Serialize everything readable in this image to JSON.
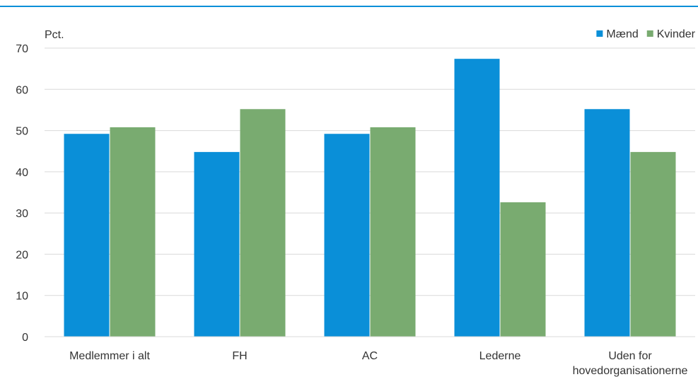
{
  "chart_data": {
    "type": "bar",
    "unit_label": "Pct.",
    "categories": [
      "Medlemmer i alt",
      "FH",
      "AC",
      "Lederne",
      [
        "Uden for",
        "hovedorganisationerne"
      ]
    ],
    "series": [
      {
        "name": "Mænd",
        "color": "#0a8fd8",
        "values": [
          49.2,
          44.8,
          49.2,
          67.4,
          55.2
        ]
      },
      {
        "name": "Kvinder",
        "color": "#79ab70",
        "values": [
          50.8,
          55.2,
          50.8,
          32.6,
          44.8
        ]
      }
    ],
    "ylim": [
      0,
      70
    ],
    "yticks": [
      0,
      10,
      20,
      30,
      40,
      50,
      60,
      70
    ],
    "grid": true,
    "legend_position": "top-right",
    "accent_color": "#0a8fd8"
  }
}
